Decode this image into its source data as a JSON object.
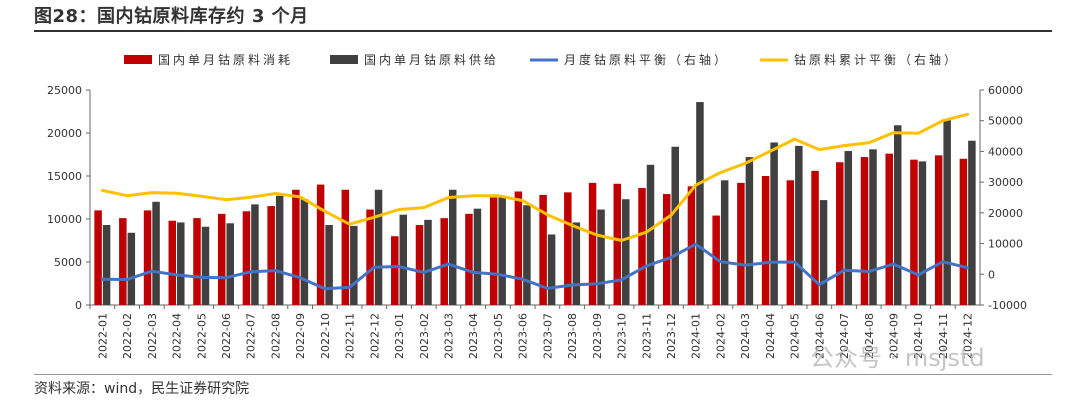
{
  "header": {
    "title": "图28：国内钴原料库存约 3 个月",
    "source": "资料来源：wind，民生证券研究院",
    "watermark": "公众号 · msjstd"
  },
  "colors": {
    "consumption": "#c00000",
    "supply": "#404040",
    "monthly_balance": "#4472c4",
    "cumulative_balance": "#ffc000"
  },
  "chart_data": {
    "type": "bar",
    "categories": [
      "2022-01",
      "2022-02",
      "2022-03",
      "2022-04",
      "2022-05",
      "2022-06",
      "2022-07",
      "2022-08",
      "2022-09",
      "2022-10",
      "2022-11",
      "2022-12",
      "2023-01",
      "2023-02",
      "2023-03",
      "2023-04",
      "2023-05",
      "2023-06",
      "2023-07",
      "2023-08",
      "2023-09",
      "2023-10",
      "2023-11",
      "2023-12",
      "2024-01",
      "2024-02",
      "2024-03",
      "2024-04",
      "2024-05",
      "2024-06",
      "2024-07",
      "2024-08",
      "2024-09",
      "2024-10",
      "2024-11",
      "2024-12"
    ],
    "y_left": {
      "range": [
        0,
        25000
      ],
      "ticks": [
        "0",
        "5000",
        "10000",
        "15000",
        "20000",
        "25000"
      ]
    },
    "y_right": {
      "range": [
        -10000,
        60000
      ],
      "ticks": [
        "-10000",
        "0",
        "10000",
        "20000",
        "30000",
        "40000",
        "50000",
        "60000"
      ]
    },
    "grid": false,
    "legend_position": "top",
    "series": [
      {
        "name": "国内单月钴原料消耗",
        "type": "bar",
        "axis": "left",
        "values": [
          11000,
          10100,
          11000,
          9800,
          10100,
          10600,
          10900,
          11500,
          13400,
          14000,
          13400,
          11100,
          8000,
          9300,
          10100,
          10600,
          12500,
          13200,
          12800,
          13100,
          14200,
          14100,
          13600,
          12900,
          13800,
          10400,
          14200,
          15000,
          14500,
          15600,
          16600,
          17200,
          17600,
          16900,
          17400,
          17000
        ]
      },
      {
        "name": "国内单月钴原料供给",
        "type": "bar",
        "axis": "left",
        "values": [
          9300,
          8400,
          12000,
          9600,
          9100,
          9500,
          11700,
          12700,
          12300,
          9300,
          9200,
          13400,
          10500,
          9900,
          13400,
          11200,
          12500,
          11600,
          8200,
          9600,
          11100,
          12300,
          16300,
          18400,
          23600,
          14500,
          17200,
          18900,
          18500,
          12200,
          17900,
          18100,
          20900,
          16700,
          21500,
          19100
        ]
      },
      {
        "name": "月度钴原料平衡（右轴）",
        "type": "line",
        "axis": "right",
        "values": [
          -1600,
          -1700,
          1000,
          -200,
          -1000,
          -1100,
          800,
          1200,
          -1100,
          -4700,
          -4200,
          2300,
          2500,
          600,
          3300,
          600,
          0,
          -1600,
          -4600,
          -3500,
          -3100,
          -1800,
          2700,
          5500,
          9800,
          4100,
          3000,
          3900,
          4000,
          -3400,
          1300,
          900,
          3300,
          -200,
          4100,
          2100
        ]
      },
      {
        "name": "钴原料累计平衡（右轴）",
        "type": "line",
        "axis": "right",
        "values": [
          27300,
          25600,
          26600,
          26400,
          25400,
          24300,
          25100,
          26300,
          25200,
          20500,
          16300,
          18600,
          21100,
          21700,
          25000,
          25600,
          25600,
          24000,
          19400,
          15900,
          12800,
          11000,
          13700,
          19200,
          29000,
          33100,
          36100,
          40000,
          44000,
          40600,
          41900,
          42800,
          46100,
          45900,
          50000,
          52100
        ]
      }
    ]
  }
}
